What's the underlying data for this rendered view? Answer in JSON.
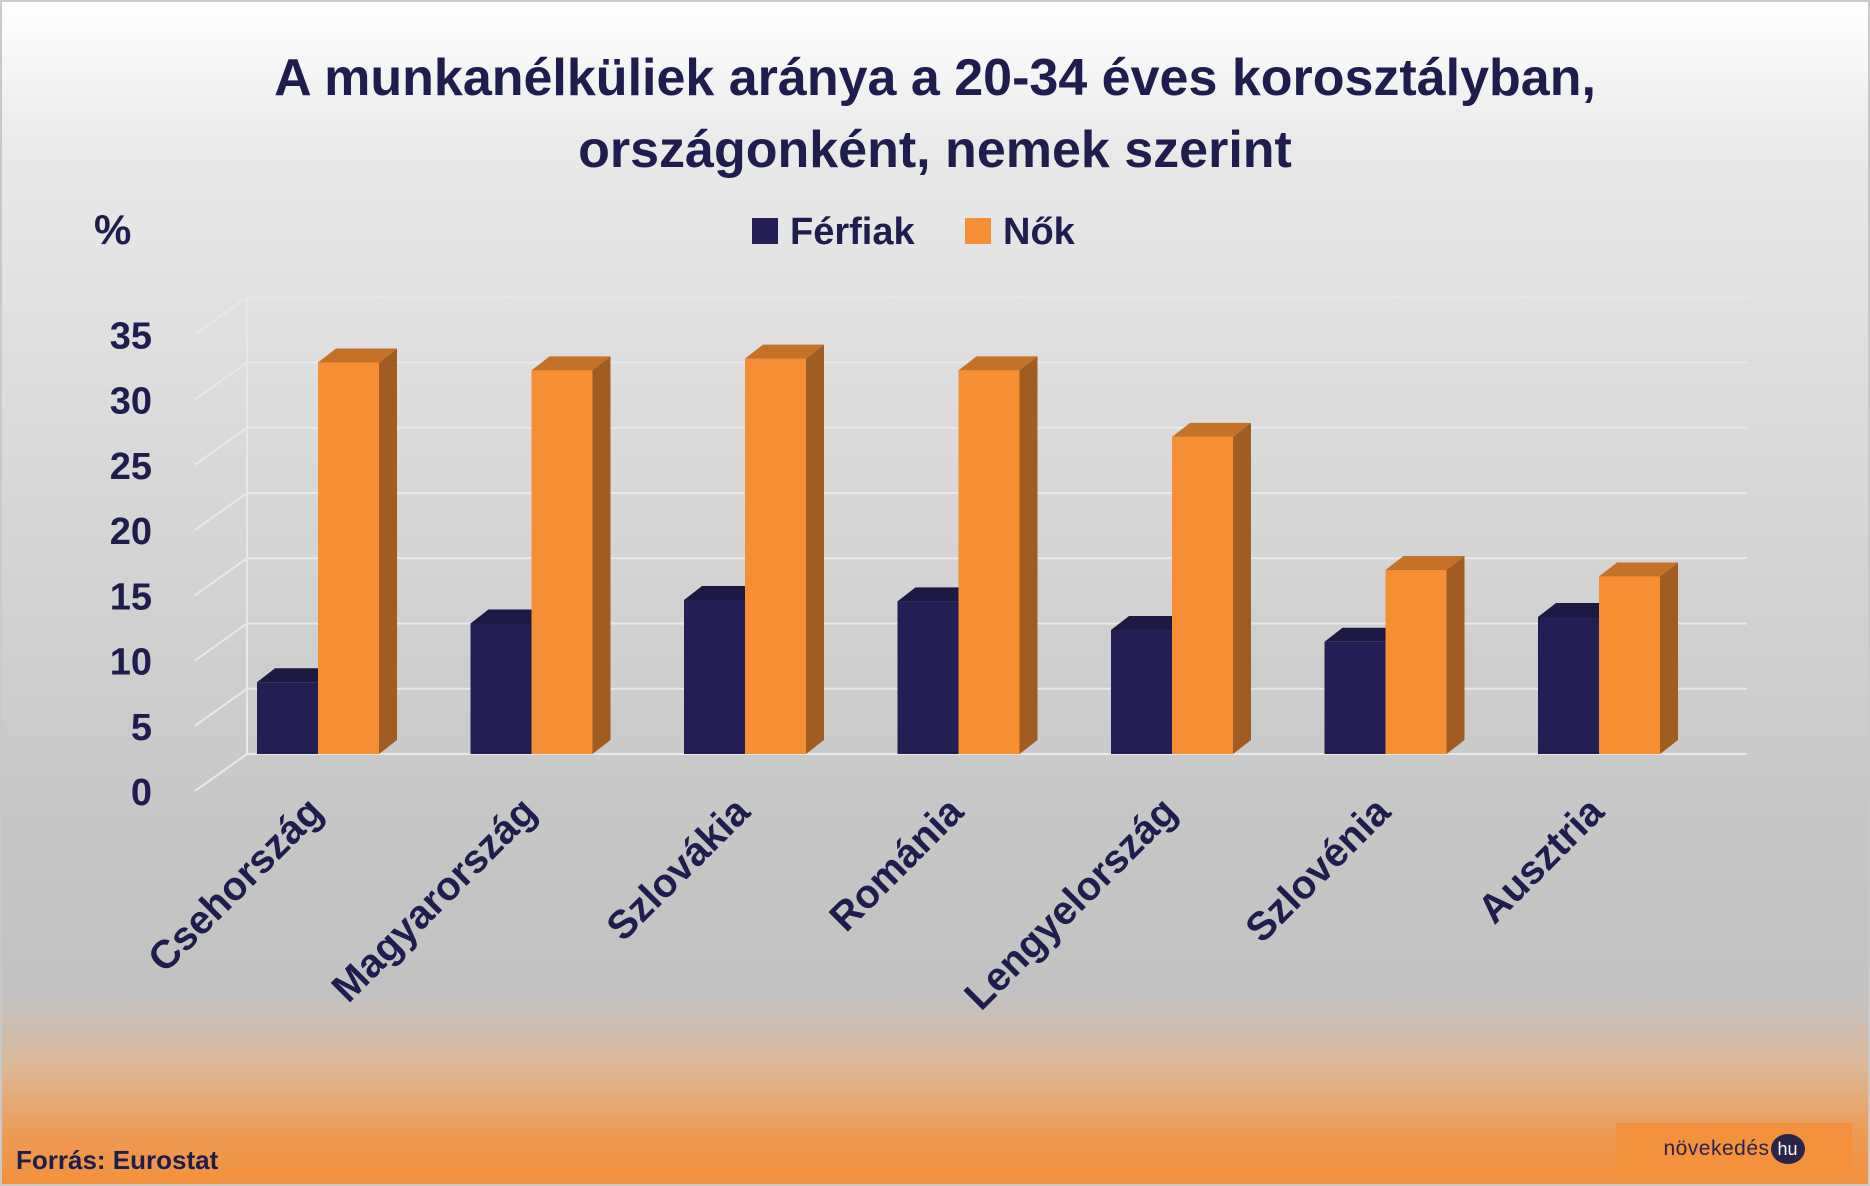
{
  "chart_data": {
    "type": "bar",
    "title_lines": [
      "A munkanélküliek aránya a 20-34 éves korosztályban,",
      "országonként, nemek szerint"
    ],
    "ylabel": "%",
    "ylim": [
      0,
      35
    ],
    "y_ticks": [
      "0",
      "5",
      "10",
      "15",
      "20",
      "25",
      "30",
      "35"
    ],
    "categories": [
      "Csehország",
      "Magyarország",
      "Szlovákia",
      "Románia",
      "Lengyelország",
      "Szlovénia",
      "Ausztria"
    ],
    "series": [
      {
        "name": "Férfiak",
        "color": "#231f54",
        "values": [
          5.5,
          10.0,
          11.8,
          11.7,
          9.5,
          8.6,
          10.5
        ]
      },
      {
        "name": "Nők",
        "color": "#f68e33",
        "values": [
          30.0,
          29.4,
          30.3,
          29.4,
          24.3,
          14.1,
          13.6
        ]
      }
    ],
    "legend_position": "top",
    "grid": true
  },
  "footer": {
    "source": "Forrás: Eurostat",
    "logo_text": "növekedés",
    "logo_badge": "hu"
  }
}
